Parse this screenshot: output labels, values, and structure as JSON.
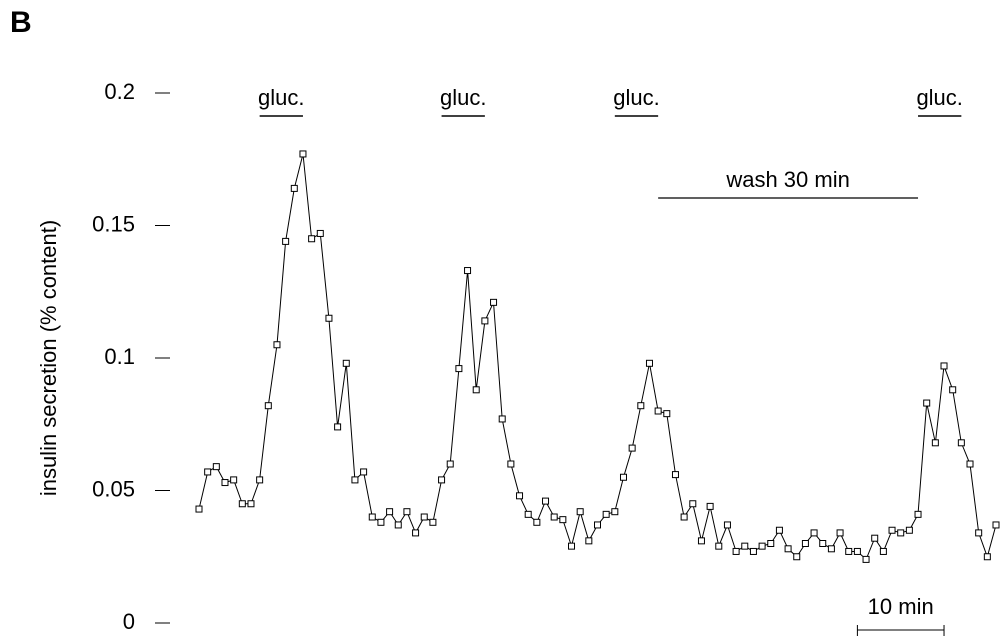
{
  "chart_data": {
    "type": "line",
    "panel_label": "B",
    "y_label": "insulin secretion (% content)",
    "x": [
      0,
      1,
      2,
      3,
      4,
      5,
      6,
      7,
      8,
      9,
      10,
      11,
      12,
      13,
      14,
      15,
      16,
      17,
      18,
      19,
      20,
      21,
      22,
      23,
      24,
      25,
      26,
      27,
      28,
      29,
      30,
      31,
      32,
      33,
      34,
      35,
      36,
      37,
      38,
      39,
      40,
      41,
      42,
      43,
      44,
      45,
      46,
      47,
      48,
      49,
      50,
      51,
      52,
      53,
      54,
      55,
      56,
      57,
      58,
      59,
      60,
      61,
      62,
      63,
      64,
      65,
      66,
      67,
      68,
      69,
      70,
      71,
      72,
      73,
      74,
      75,
      76,
      77,
      78,
      79,
      80,
      81,
      82,
      83,
      84,
      85,
      86,
      87,
      88,
      89,
      90,
      91,
      92
    ],
    "values": [
      0.043,
      0.057,
      0.059,
      0.053,
      0.054,
      0.045,
      0.045,
      0.054,
      0.082,
      0.105,
      0.144,
      0.164,
      0.177,
      0.145,
      0.147,
      0.115,
      0.074,
      0.098,
      0.054,
      0.057,
      0.04,
      0.038,
      0.042,
      0.037,
      0.042,
      0.034,
      0.04,
      0.038,
      0.054,
      0.06,
      0.096,
      0.133,
      0.088,
      0.114,
      0.121,
      0.077,
      0.06,
      0.048,
      0.041,
      0.038,
      0.046,
      0.04,
      0.039,
      0.029,
      0.042,
      0.031,
      0.037,
      0.041,
      0.042,
      0.055,
      0.066,
      0.082,
      0.098,
      0.08,
      0.079,
      0.056,
      0.04,
      0.045,
      0.031,
      0.044,
      0.029,
      0.037,
      0.027,
      0.029,
      0.027,
      0.029,
      0.03,
      0.035,
      0.028,
      0.025,
      0.03,
      0.034,
      0.03,
      0.028,
      0.034,
      0.027,
      0.027,
      0.024,
      0.032,
      0.027,
      0.035,
      0.034,
      0.035,
      0.041,
      0.083,
      0.068,
      0.097,
      0.088,
      0.068,
      0.06,
      0.034,
      0.025,
      0.037
    ],
    "color": "#000000",
    "xlim": [
      0,
      92
    ],
    "ylim": [
      0,
      0.2
    ],
    "yticks": [
      0,
      0.05,
      0.1,
      0.15,
      0.2
    ],
    "annotations": [
      {
        "text": "gluc.",
        "start": 7,
        "end": 12
      },
      {
        "text": "gluc.",
        "start": 28,
        "end": 33
      },
      {
        "text": "gluc.",
        "start": 48,
        "end": 53
      },
      {
        "text": "gluc.",
        "start": 83,
        "end": 88
      }
    ],
    "wash": {
      "text": "wash 30 min",
      "start": 53,
      "end": 83
    },
    "scale_bar": {
      "text": "10 min",
      "start": 76,
      "end": 86
    }
  }
}
